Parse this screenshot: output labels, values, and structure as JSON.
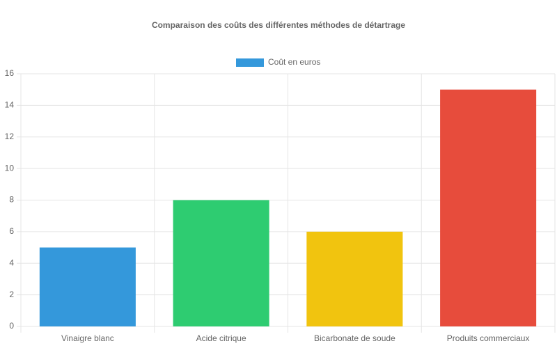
{
  "chart_data": {
    "type": "bar",
    "title": "Comparaison des coûts des différentes méthodes de détartrage",
    "categories": [
      "Vinaigre blanc",
      "Acide citrique",
      "Bicarbonate de soude",
      "Produits commerciaux"
    ],
    "series": [
      {
        "name": "Coût en euros",
        "colors": [
          "#3498db",
          "#2ecc71",
          "#f1c40f",
          "#e74c3c"
        ],
        "values": [
          5,
          8,
          6,
          15
        ]
      }
    ],
    "ylim": [
      0,
      16
    ],
    "yticks": [
      0,
      2,
      4,
      6,
      8,
      10,
      12,
      14,
      16
    ],
    "grid": true,
    "legend": "top"
  }
}
